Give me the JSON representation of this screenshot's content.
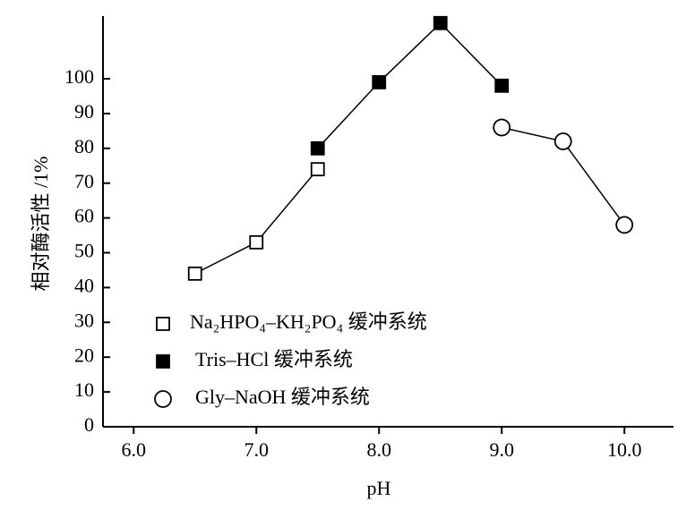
{
  "chart_data": {
    "type": "line",
    "y_label": "相对酶活性 /1%",
    "x_label": "pH",
    "xlim": [
      5.75,
      10.4
    ],
    "xticks": [
      {
        "value": 6,
        "label": "6.0"
      },
      {
        "value": 7,
        "label": "7.0"
      },
      {
        "value": 8,
        "label": "8.0"
      },
      {
        "value": 9,
        "label": "9.0"
      },
      {
        "value": 10,
        "label": "10.0"
      }
    ],
    "ylim": [
      0,
      118
    ],
    "yticks": [
      0,
      10,
      20,
      30,
      40,
      50,
      60,
      70,
      80,
      90,
      100
    ],
    "legend": "lower left",
    "series": [
      {
        "name": "Na₂HPO₄–KH₂PO₄ 缓冲系统",
        "color": "#000000",
        "marker": "open-square",
        "x": [
          6.5,
          7.0,
          7.5
        ],
        "values": [
          44,
          53,
          74
        ]
      },
      {
        "name": "Tris–HCl 缓冲系统",
        "color": "#000000",
        "marker": "filled-square",
        "x": [
          7.5,
          8.0,
          8.5,
          9.0
        ],
        "values": [
          80,
          99,
          116,
          98
        ]
      },
      {
        "name": "Gly–NaOH 缓冲系统",
        "color": "#000000",
        "marker": "open-circle",
        "x": [
          9.0,
          9.5,
          10.0
        ],
        "values": [
          86,
          82,
          58
        ]
      }
    ]
  }
}
